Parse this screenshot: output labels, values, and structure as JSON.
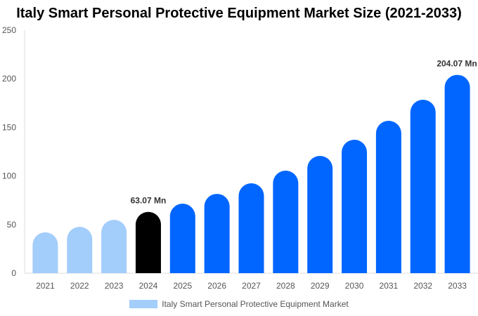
{
  "chart_data": {
    "type": "bar",
    "title": "Italy Smart Personal Protective Equipment Market Size (2021-2033)",
    "categories": [
      "2021",
      "2022",
      "2023",
      "2024",
      "2025",
      "2026",
      "2027",
      "2028",
      "2029",
      "2030",
      "2031",
      "2032",
      "2033"
    ],
    "series": [
      {
        "name": "Italy Smart Personal Protective Equipment Market",
        "values": [
          42,
          47.7,
          54.9,
          63.07,
          71.5,
          81.6,
          92.5,
          105.5,
          120.7,
          137.3,
          156.8,
          178.5,
          204.07
        ]
      }
    ],
    "bar_colors": [
      "#a3cdfb",
      "#a3cdfb",
      "#a3cdfb",
      "#000000",
      "#0066ff",
      "#0066ff",
      "#0066ff",
      "#0066ff",
      "#0066ff",
      "#0066ff",
      "#0066ff",
      "#0066ff",
      "#0066ff"
    ],
    "data_labels": {
      "3": "63.07 Mn",
      "12": "204.07 Mn"
    },
    "ylim": [
      0,
      250
    ],
    "yticks": [
      0,
      50,
      100,
      150,
      200,
      250
    ],
    "grid": false,
    "legend_position": "bottom",
    "legend_color": "#a3cdfb"
  }
}
